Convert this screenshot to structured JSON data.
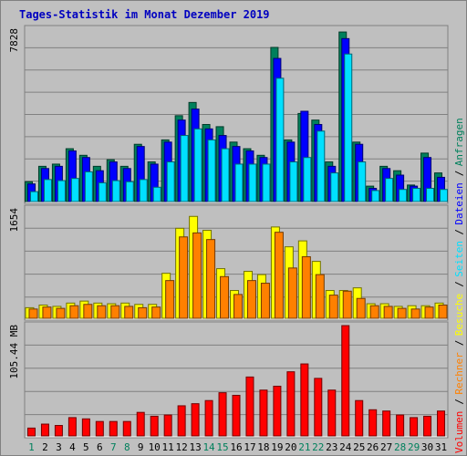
{
  "title": "Tages-Statistik im Monat Dezember 2019",
  "chart_data": [
    {
      "type": "bar",
      "title": "Tages-Statistik im Monat Dezember 2019",
      "categories": [
        "1",
        "2",
        "3",
        "4",
        "5",
        "6",
        "7",
        "8",
        "9",
        "10",
        "11",
        "12",
        "13",
        "14",
        "15",
        "16",
        "17",
        "18",
        "19",
        "20",
        "21",
        "22",
        "23",
        "24",
        "25",
        "26",
        "27",
        "28",
        "29",
        "30",
        "31"
      ],
      "weekend_days": [
        "1",
        "7",
        "8",
        "14",
        "15",
        "21",
        "22",
        "28",
        "29"
      ],
      "max_label": "7828",
      "ylim": [
        0,
        7828
      ],
      "grid": true,
      "series": [
        {
          "name": "Anfragen",
          "color": "#00805c",
          "values": [
            900,
            1600,
            1700,
            2400,
            2100,
            1600,
            1900,
            1600,
            2600,
            1800,
            2800,
            3900,
            4500,
            3500,
            3400,
            2700,
            2400,
            2100,
            7000,
            2800,
            4000,
            3700,
            1800,
            7700,
            2700,
            700,
            1600,
            1400,
            750,
            2200,
            1300
          ]
        },
        {
          "name": "Dateien",
          "color": "#0000ff",
          "values": [
            800,
            1500,
            1600,
            2300,
            2000,
            1400,
            1800,
            1500,
            2500,
            1700,
            2700,
            3700,
            4200,
            3300,
            3000,
            2500,
            2300,
            2000,
            6500,
            2700,
            4100,
            3500,
            1600,
            7400,
            2600,
            600,
            1500,
            1200,
            700,
            2000,
            1100
          ]
        },
        {
          "name": "Seiten",
          "color": "#00e0ff",
          "values": [
            450,
            1000,
            950,
            1050,
            1350,
            850,
            950,
            900,
            1000,
            650,
            1800,
            3000,
            3300,
            2800,
            2400,
            1700,
            1700,
            1700,
            5600,
            1800,
            2000,
            3200,
            1300,
            6700,
            1800,
            500,
            1050,
            550,
            600,
            600,
            550
          ]
        }
      ]
    },
    {
      "type": "bar",
      "categories": [
        "1",
        "2",
        "3",
        "4",
        "5",
        "6",
        "7",
        "8",
        "9",
        "10",
        "11",
        "12",
        "13",
        "14",
        "15",
        "16",
        "17",
        "18",
        "19",
        "20",
        "21",
        "22",
        "23",
        "24",
        "25",
        "26",
        "27",
        "28",
        "29",
        "30",
        "31"
      ],
      "max_label": "1654",
      "ylim": [
        0,
        1654
      ],
      "grid": true,
      "series": [
        {
          "name": "Besuche",
          "color": "#ffff00",
          "values": [
            160,
            200,
            180,
            230,
            260,
            230,
            220,
            230,
            210,
            210,
            680,
            1360,
            1540,
            1330,
            750,
            420,
            710,
            660,
            1380,
            1080,
            1170,
            860,
            420,
            420,
            460,
            220,
            220,
            180,
            190,
            190,
            230
          ]
        },
        {
          "name": "Rechner",
          "color": "#ff8000",
          "values": [
            140,
            170,
            150,
            190,
            210,
            190,
            190,
            180,
            160,
            170,
            570,
            1230,
            1290,
            1190,
            630,
            360,
            570,
            530,
            1300,
            760,
            930,
            660,
            350,
            410,
            300,
            190,
            180,
            150,
            140,
            170,
            200
          ]
        }
      ]
    },
    {
      "type": "bar",
      "categories": [
        "1",
        "2",
        "3",
        "4",
        "5",
        "6",
        "7",
        "8",
        "9",
        "10",
        "11",
        "12",
        "13",
        "14",
        "15",
        "16",
        "17",
        "18",
        "19",
        "20",
        "21",
        "22",
        "23",
        "24",
        "25",
        "26",
        "27",
        "28",
        "29",
        "30",
        "31"
      ],
      "max_label": "105.44 MB",
      "ylim": [
        0,
        105.44
      ],
      "grid": true,
      "series": [
        {
          "name": "Volumen",
          "color": "#ff0000",
          "values": [
            7.5,
            11.3,
            10,
            17.5,
            16.3,
            13.8,
            13.8,
            13.8,
            22.5,
            18.8,
            20,
            28.8,
            30.8,
            33.8,
            41.3,
            38.8,
            56.3,
            43.8,
            47.5,
            61.3,
            68.8,
            55,
            43.8,
            105.4,
            33.8,
            25,
            23.8,
            20,
            17.5,
            18.8,
            23.8
          ]
        }
      ]
    }
  ],
  "legend": [
    {
      "label": "Volumen",
      "color": "#ff0000"
    },
    {
      "label": "Rechner",
      "color": "#ff8000"
    },
    {
      "label": "Besuche",
      "color": "#ffff00"
    },
    {
      "label": "Seiten",
      "color": "#00e0ff"
    },
    {
      "label": "Dateien",
      "color": "#0000ff"
    },
    {
      "label": "Anfragen",
      "color": "#00805c"
    }
  ],
  "colors": {
    "background": "#c0c0c0",
    "plot_background": "#bfbfbf",
    "grid": "#808080",
    "title": "#0000c0",
    "weekday_label": "#000000",
    "weekend_label": "#00805c"
  }
}
